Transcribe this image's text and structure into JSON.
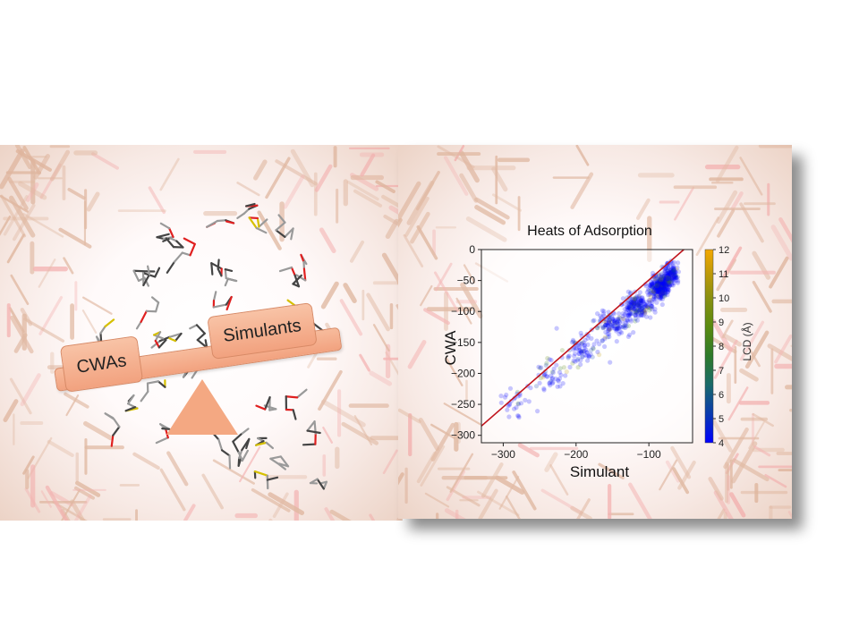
{
  "balance": {
    "left_label": "CWAs",
    "right_label": "Simulants"
  },
  "colors": {
    "framework": "#d9a98d",
    "oxygen": "#f2a3a3",
    "balance_fill": "#f4a882",
    "fit_line": "#c0141c"
  },
  "chart_data": {
    "type": "scatter",
    "title": "Heats of Adsorption",
    "xlabel": "Simulant",
    "ylabel": "CWA",
    "xlim": [
      -330,
      -40
    ],
    "ylim": [
      -312,
      0
    ],
    "xticks": [
      -300,
      -200,
      -100
    ],
    "yticks": [
      0,
      -50,
      -100,
      -150,
      -200,
      -250,
      -300
    ],
    "grid": false,
    "colorbar": {
      "label": "LCD (Å)",
      "range": [
        4,
        12
      ],
      "ticks": [
        4,
        5,
        6,
        7,
        8,
        9,
        10,
        11,
        12
      ],
      "colormap": [
        "#0000ff",
        "#0a3ab0",
        "#1a6a6a",
        "#2e7a2a",
        "#5a8a10",
        "#8a9010",
        "#c09a08",
        "#f4a800"
      ]
    },
    "fit_line": {
      "x": [
        -330,
        -52
      ],
      "y": [
        -285,
        0
      ]
    },
    "point_clusters": [
      {
        "x_mean": -280,
        "x_sd": 14,
        "y_mean": -245,
        "y_sd": 16,
        "n": 30
      },
      {
        "x_mean": -235,
        "x_sd": 18,
        "y_mean": -200,
        "y_sd": 18,
        "n": 50
      },
      {
        "x_mean": -190,
        "x_sd": 18,
        "y_mean": -160,
        "y_sd": 18,
        "n": 80
      },
      {
        "x_mean": -150,
        "x_sd": 16,
        "y_mean": -120,
        "y_sd": 15,
        "n": 130
      },
      {
        "x_mean": -115,
        "x_sd": 14,
        "y_mean": -90,
        "y_sd": 14,
        "n": 200
      },
      {
        "x_mean": -85,
        "x_sd": 10,
        "y_mean": -60,
        "y_sd": 14,
        "n": 320
      },
      {
        "x_mean": -70,
        "x_sd": 7,
        "y_mean": -40,
        "y_sd": 12,
        "n": 160
      }
    ]
  }
}
